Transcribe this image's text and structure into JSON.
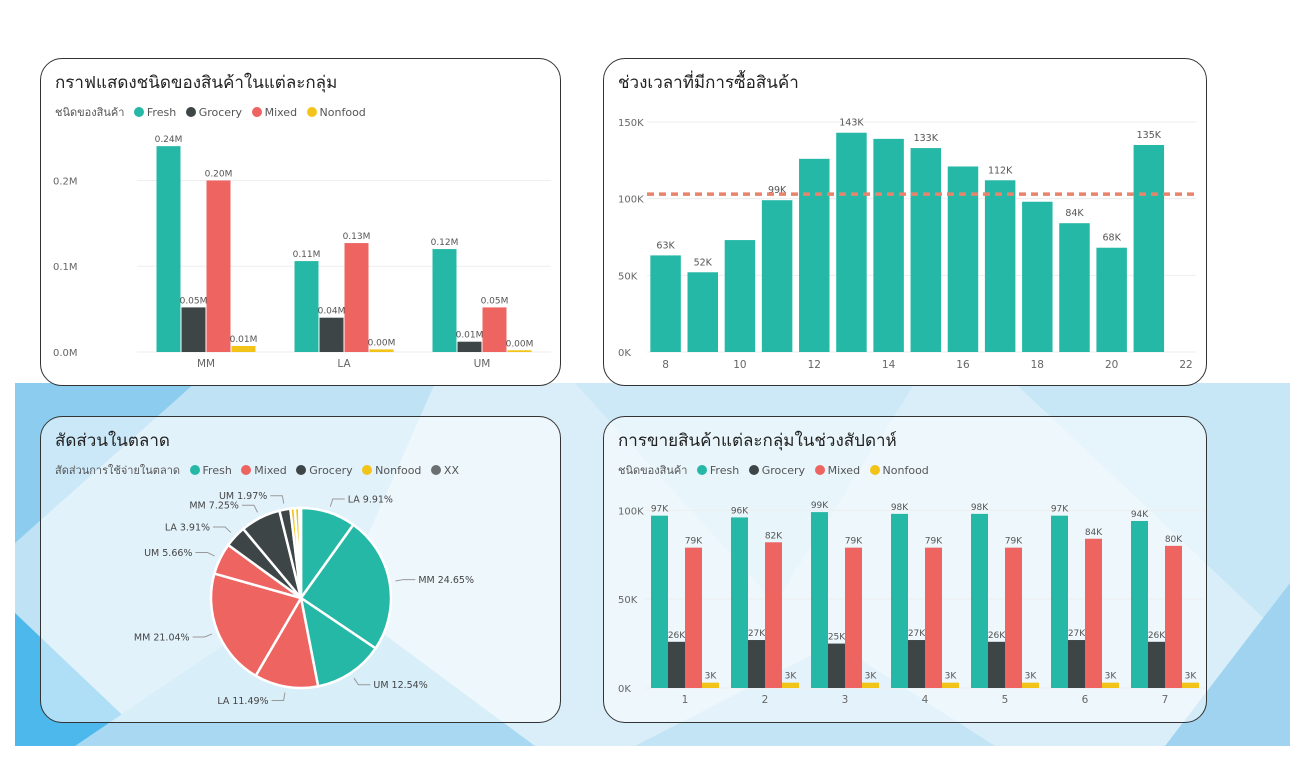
{
  "colors": {
    "fresh": "#26b8a6",
    "grocery": "#3d4547",
    "mixed": "#ee6461",
    "nonfood": "#f2c318",
    "xx": "#6b6f71",
    "avg_line": "#e8836c",
    "axis_text": "#666666",
    "grid": "#eeeeee",
    "bg_light": "#d9eef9",
    "bg_mid": "#9fd3f0",
    "bg_dark": "#4db8ec"
  },
  "panels": {
    "p1": {
      "title": "กราฟแสดงชนิดของสินค้าในแต่ละกลุ่ม",
      "legend_title": "ชนิดของสินค้า",
      "legend": [
        {
          "label": "Fresh",
          "color_key": "fresh"
        },
        {
          "label": "Grocery",
          "color_key": "grocery"
        },
        {
          "label": "Mixed",
          "color_key": "mixed"
        },
        {
          "label": "Nonfood",
          "color_key": "nonfood"
        }
      ]
    },
    "p2": {
      "title": "ช่วงเวลาที่มีการซื้อสินค้า"
    },
    "p3": {
      "title": "สัดส่วนในตลาด",
      "legend_title": "สัดส่วนการใช้จ่ายในตลาด",
      "legend": [
        {
          "label": "Fresh",
          "color_key": "fresh"
        },
        {
          "label": "Mixed",
          "color_key": "mixed"
        },
        {
          "label": "Grocery",
          "color_key": "grocery"
        },
        {
          "label": "Nonfood",
          "color_key": "nonfood"
        },
        {
          "label": "XX",
          "color_key": "xx"
        }
      ]
    },
    "p4": {
      "title": "การขายสินค้าแต่ละกลุ่มในช่วงสัปดาห์",
      "legend_title": "ชนิดของสินค้า",
      "legend": [
        {
          "label": "Fresh",
          "color_key": "fresh"
        },
        {
          "label": "Grocery",
          "color_key": "grocery"
        },
        {
          "label": "Mixed",
          "color_key": "mixed"
        },
        {
          "label": "Nonfood",
          "color_key": "nonfood"
        }
      ]
    }
  },
  "chart_data": [
    {
      "id": "p1",
      "type": "bar",
      "categories": [
        "MM",
        "LA",
        "UM"
      ],
      "series": [
        {
          "name": "Fresh",
          "color_key": "fresh",
          "values": [
            0.24,
            0.106,
            0.12
          ],
          "labels": [
            "0.24M",
            "0.11M",
            "0.12M"
          ]
        },
        {
          "name": "Grocery",
          "color_key": "grocery",
          "values": [
            0.052,
            0.04,
            0.012
          ],
          "labels": [
            "0.05M",
            "0.04M",
            "0.01M"
          ]
        },
        {
          "name": "Mixed",
          "color_key": "mixed",
          "values": [
            0.2,
            0.127,
            0.052
          ],
          "labels": [
            "0.20M",
            "0.13M",
            "0.05M"
          ]
        },
        {
          "name": "Nonfood",
          "color_key": "nonfood",
          "values": [
            0.007,
            0.003,
            0.002
          ],
          "labels": [
            "0.01M",
            "0.00M",
            "0.00M"
          ]
        }
      ],
      "yticks": [
        0,
        0.1,
        0.2
      ],
      "ytick_labels": [
        "0.0M",
        "0.1M",
        "0.2M"
      ],
      "ylim": [
        0,
        0.26
      ],
      "grid": true
    },
    {
      "id": "p2",
      "type": "bar",
      "x": [
        8,
        9,
        10,
        11,
        12,
        13,
        14,
        15,
        16,
        17,
        18,
        19,
        20,
        21
      ],
      "values": [
        63,
        52,
        73,
        99,
        126,
        143,
        139,
        133,
        121,
        112,
        98,
        84,
        68,
        135
      ],
      "labels": [
        "63K",
        "52K",
        "",
        "99K",
        "",
        "143K",
        "",
        "133K",
        "",
        "112K",
        "",
        "84K",
        "68K",
        "135K"
      ],
      "xticks": [
        8,
        10,
        12,
        14,
        16,
        18,
        20,
        22
      ],
      "yticks": [
        0,
        50,
        100,
        150
      ],
      "ytick_labels": [
        "0K",
        "50K",
        "100K",
        "150K"
      ],
      "ylim": [
        0,
        150
      ],
      "xlim": [
        7.5,
        22
      ],
      "avg_line": 103,
      "grid": true
    },
    {
      "id": "p3",
      "type": "pie",
      "slices": [
        {
          "label": "LA 9.91%",
          "value": 9.91,
          "color_key": "fresh"
        },
        {
          "label": "MM 24.65%",
          "value": 24.65,
          "color_key": "fresh"
        },
        {
          "label": "UM 12.54%",
          "value": 12.54,
          "color_key": "fresh"
        },
        {
          "label": "LA 11.49%",
          "value": 11.49,
          "color_key": "mixed"
        },
        {
          "label": "MM 21.04%",
          "value": 21.04,
          "color_key": "mixed"
        },
        {
          "label": "UM 5.66%",
          "value": 5.66,
          "color_key": "mixed"
        },
        {
          "label": "LA 3.91%",
          "value": 3.91,
          "color_key": "grocery"
        },
        {
          "label": "MM 7.25%",
          "value": 7.25,
          "color_key": "grocery"
        },
        {
          "label": "UM 1.97%",
          "value": 1.97,
          "color_key": "grocery"
        },
        {
          "label": "",
          "value": 0.8,
          "color_key": "nonfood"
        },
        {
          "label": "",
          "value": 0.8,
          "color_key": "nonfood"
        },
        {
          "label": "",
          "value": 0.3,
          "color_key": "xx"
        }
      ]
    },
    {
      "id": "p4",
      "type": "bar",
      "categories": [
        "1",
        "2",
        "3",
        "4",
        "5",
        "6",
        "7"
      ],
      "series": [
        {
          "name": "Fresh",
          "color_key": "fresh",
          "values": [
            97,
            96,
            99,
            98,
            98,
            97,
            94
          ],
          "labels": [
            "97K",
            "96K",
            "99K",
            "98K",
            "98K",
            "97K",
            "94K"
          ]
        },
        {
          "name": "Grocery",
          "color_key": "grocery",
          "values": [
            26,
            27,
            25,
            27,
            26,
            27,
            26
          ],
          "labels": [
            "26K",
            "27K",
            "25K",
            "27K",
            "26K",
            "27K",
            "26K"
          ]
        },
        {
          "name": "Mixed",
          "color_key": "mixed",
          "values": [
            79,
            82,
            79,
            79,
            79,
            84,
            80
          ],
          "labels": [
            "79K",
            "82K",
            "79K",
            "79K",
            "79K",
            "84K",
            "80K"
          ]
        },
        {
          "name": "Nonfood",
          "color_key": "nonfood",
          "values": [
            3,
            3,
            3,
            3,
            3,
            3,
            3
          ],
          "labels": [
            "3K",
            "3K",
            "3K",
            "3K",
            "3K",
            "3K",
            "3K"
          ]
        }
      ],
      "yticks": [
        0,
        50,
        100
      ],
      "ytick_labels": [
        "0K",
        "50K",
        "100K"
      ],
      "ylim": [
        0,
        103
      ],
      "grid": true
    }
  ]
}
